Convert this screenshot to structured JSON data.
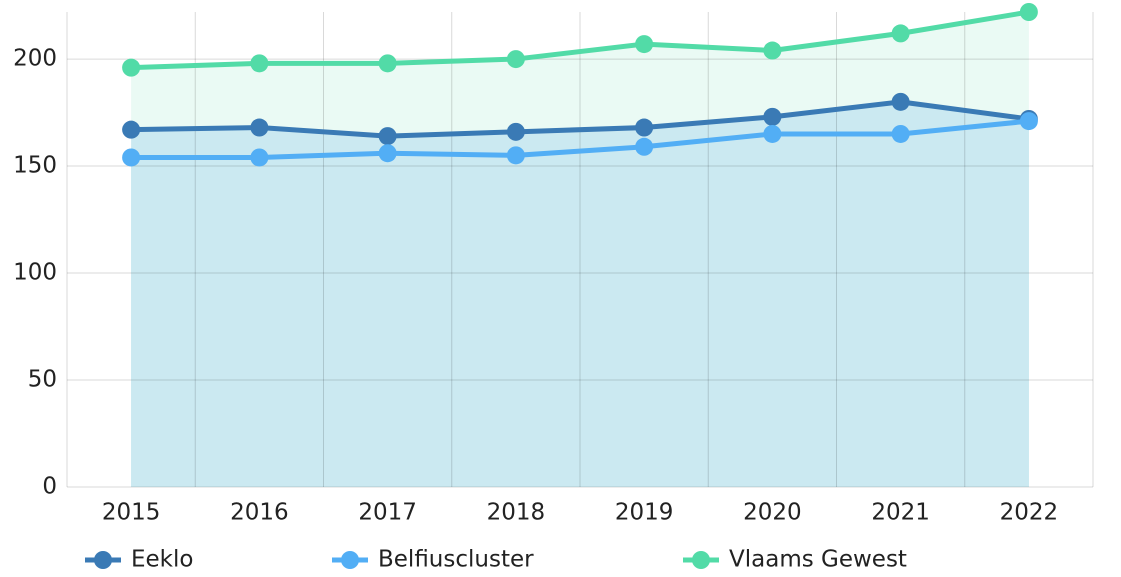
{
  "chart_data": {
    "type": "line",
    "categories": [
      "2015",
      "2016",
      "2017",
      "2018",
      "2019",
      "2020",
      "2021",
      "2022"
    ],
    "series": [
      {
        "name": "Eeklo",
        "color": "#3a7ab5",
        "area_color": "#cbe9f1",
        "values": [
          167,
          168,
          164,
          166,
          168,
          173,
          180,
          172
        ]
      },
      {
        "name": "Belfiuscluster",
        "color": "#52aef5",
        "area_color": "#cbe9f1",
        "values": [
          154,
          154,
          156,
          155,
          159,
          165,
          165,
          171
        ]
      },
      {
        "name": "Vlaams Gewest",
        "color": "#52dba7",
        "area_color": "#eafaf4",
        "values": [
          196,
          198,
          198,
          200,
          207,
          204,
          212,
          222
        ]
      }
    ],
    "ylim": [
      0,
      222
    ],
    "yticks": [
      0,
      50,
      100,
      150,
      200
    ],
    "grid": true,
    "legend": "bottom"
  }
}
